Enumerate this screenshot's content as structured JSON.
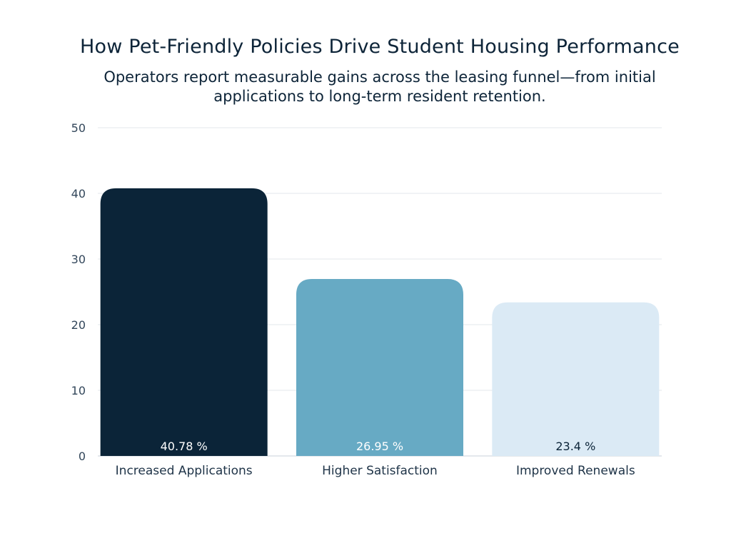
{
  "chart_data": {
    "type": "bar",
    "title": "How Pet-Friendly Policies Drive Student Housing Performance",
    "subtitle": "Operators report measurable gains across the leasing funnel—from initial applications to long-term resident retention.",
    "xlabel": "",
    "ylabel": "",
    "categories": [
      "Increased Applications",
      "Higher Satisfaction",
      "Improved Renewals"
    ],
    "values": [
      40.78,
      26.95,
      23.4
    ],
    "value_labels": [
      "40.78 %",
      "26.95 %",
      "23.4 %"
    ],
    "ylim": [
      0,
      50
    ],
    "yticks": [
      0,
      10,
      20,
      30,
      40,
      50
    ],
    "grid": true,
    "legend": "none",
    "bar_colors": [
      "#0b2438",
      "#67aac4",
      "#dbeaf5"
    ],
    "label_colors": [
      "#ffffff",
      "#ffffff",
      "#0b2438"
    ]
  }
}
